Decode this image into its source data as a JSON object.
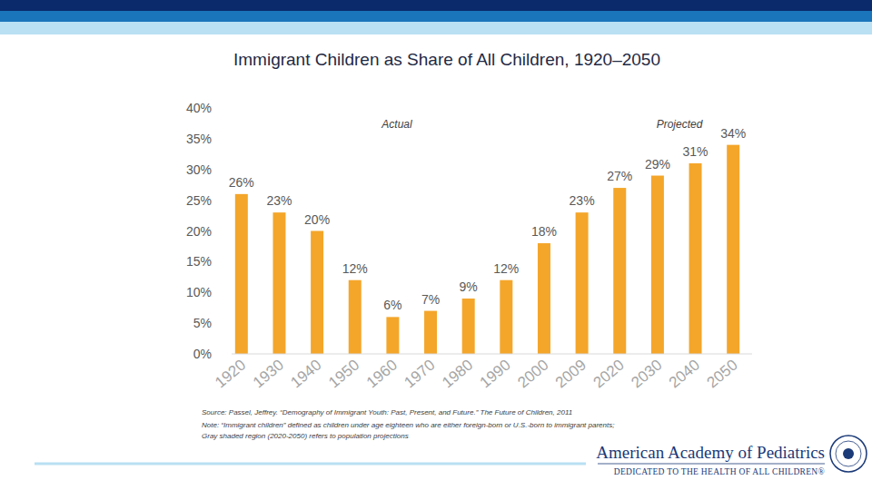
{
  "chart_data": {
    "type": "bar",
    "title": "Immigrant Children as Share of All Children, 1920–2050",
    "categories": [
      "1920",
      "1930",
      "1940",
      "1950",
      "1960",
      "1970",
      "1980",
      "1990",
      "2000",
      "2009",
      "2020",
      "2030",
      "2040",
      "2050"
    ],
    "values": [
      26,
      23,
      20,
      12,
      6,
      7,
      9,
      12,
      18,
      23,
      27,
      29,
      31,
      34
    ],
    "value_labels": [
      "26%",
      "23%",
      "20%",
      "12%",
      "6%",
      "7%",
      "9%",
      "12%",
      "18%",
      "23%",
      "27%",
      "29%",
      "31%",
      "34%"
    ],
    "color": "#f4a62a",
    "ylim": [
      0,
      40
    ],
    "yticks": [
      {
        "value": 0,
        "label": "0%"
      },
      {
        "value": 5,
        "label": "5%"
      },
      {
        "value": 10,
        "label": "10%"
      },
      {
        "value": 15,
        "label": "15%"
      },
      {
        "value": 20,
        "label": "20%"
      },
      {
        "value": 25,
        "label": "25%"
      },
      {
        "value": 30,
        "label": "30%"
      },
      {
        "value": 35,
        "label": "35%"
      },
      {
        "value": 40,
        "label": "40%"
      }
    ],
    "grid": false,
    "data_labels": true,
    "annotations": [
      "Actual",
      "Projected"
    ]
  },
  "footer": {
    "source": "Source: Passel, Jeffrey. “Demography of Immigrant Youth: Past, Present, and Future.” The Future of Children, 2011",
    "note": [
      "Note: “Immigrant children” defined as children under age eighteen who are either foreign-born or U.S.-born to immigrant parents;",
      "Gray shaded region (2020-2050) refers to population projections"
    ],
    "logo": {
      "name": "American Academy of Pediatrics",
      "tagline": "DEDICATED TO THE HEALTH OF ALL CHILDREN®"
    }
  }
}
